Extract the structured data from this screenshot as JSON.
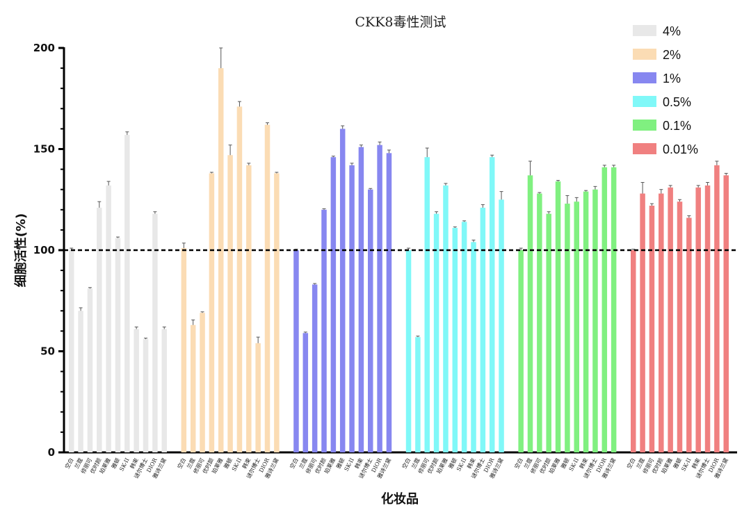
{
  "chart_data": {
    "type": "bar",
    "title": "CKK8毒性测试",
    "xlabel": "化妆品",
    "ylabel": "细胞活性(%)",
    "ylim": [
      0,
      200
    ],
    "yticks": [
      0,
      50,
      100,
      150,
      200
    ],
    "reference_line": 100,
    "legend_position": "top-right",
    "categories": [
      "空白",
      "兰蔻",
      "修丽可",
      "优时颜",
      "珀莱雅",
      "雅顿",
      "SK-II",
      "韩束",
      "谜尔博士",
      "DIOR",
      "雅诗兰黛"
    ],
    "series": [
      {
        "name": "4%",
        "color": "#e8e8e8",
        "values": [
          100,
          70,
          81,
          121,
          132,
          106,
          157,
          61,
          56,
          118,
          61
        ],
        "errors": [
          1,
          1.5,
          0.5,
          3,
          2,
          0.5,
          1.5,
          1,
          0.5,
          1,
          1
        ]
      },
      {
        "name": "2%",
        "color": "#fbdcb4",
        "values": [
          101,
          63,
          69,
          138,
          190,
          147,
          171,
          142,
          54,
          162,
          138
        ],
        "errors": [
          2.5,
          2.5,
          0.5,
          0.5,
          10,
          5,
          2.5,
          1,
          3,
          1,
          0.5
        ]
      },
      {
        "name": "1%",
        "color": "#8787f0",
        "values": [
          100,
          59,
          83,
          120,
          146,
          160,
          142,
          151,
          130,
          152,
          148
        ],
        "errors": [
          0.5,
          0.5,
          0.5,
          0.5,
          0.5,
          1.5,
          1,
          1,
          0.5,
          1.5,
          1.5
        ]
      },
      {
        "name": "0.5%",
        "color": "#80f8f8",
        "values": [
          100,
          57,
          146,
          118,
          132,
          111,
          114,
          104,
          121,
          146,
          125
        ],
        "errors": [
          1,
          0.5,
          4.5,
          1,
          1,
          0.5,
          0.5,
          1,
          1.5,
          1,
          4
        ]
      },
      {
        "name": "0.1%",
        "color": "#80f080",
        "values": [
          100,
          137,
          128,
          118,
          134,
          123,
          124,
          129,
          130,
          141,
          141
        ],
        "errors": [
          1,
          7,
          0.5,
          1,
          0.5,
          4,
          2,
          0.5,
          1.5,
          1,
          1
        ]
      },
      {
        "name": "0.01%",
        "color": "#f08080",
        "values": [
          100,
          128,
          122,
          128,
          131,
          124,
          116,
          131,
          132,
          142,
          137
        ],
        "errors": [
          0.5,
          5.5,
          1,
          2,
          1,
          1,
          1,
          1,
          1.5,
          2,
          1
        ]
      }
    ]
  }
}
